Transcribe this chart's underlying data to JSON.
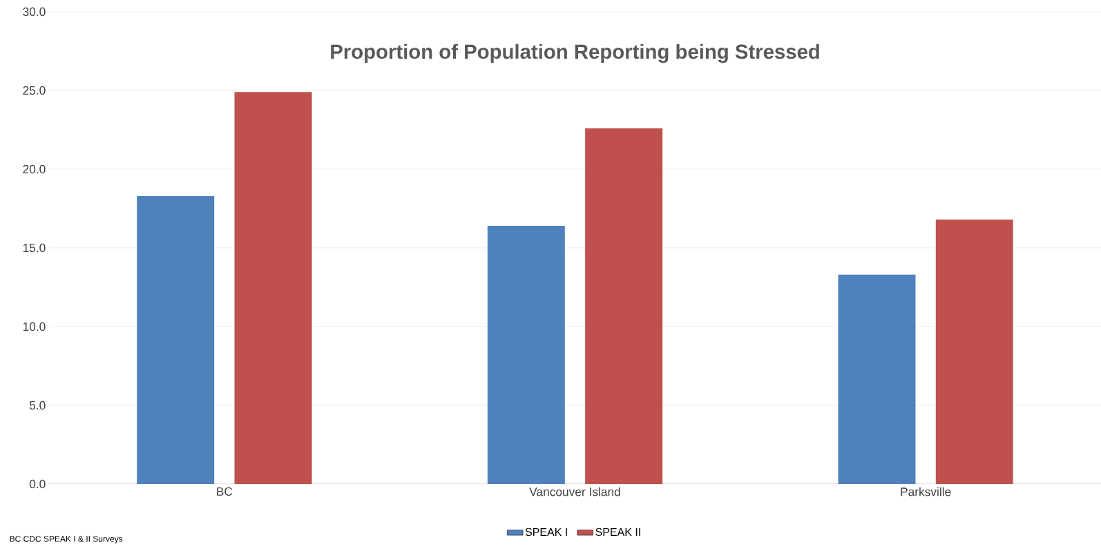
{
  "chart_data": {
    "type": "bar",
    "title": "Proportion of Population Reporting being Stressed",
    "categories": [
      "BC",
      "Vancouver Island",
      "Parksville"
    ],
    "series": [
      {
        "name": "SPEAK I",
        "color": "#4f81bd",
        "values": [
          18.3,
          16.4,
          13.3
        ]
      },
      {
        "name": "SPEAK II",
        "color": "#c0504d",
        "values": [
          24.9,
          22.6,
          16.8
        ]
      }
    ],
    "ylim": [
      0,
      30
    ],
    "yticks": [
      {
        "value": 0,
        "label": "0.0"
      },
      {
        "value": 5,
        "label": "5.0"
      },
      {
        "value": 10,
        "label": "10.0"
      },
      {
        "value": 15,
        "label": "15.0"
      },
      {
        "value": 20,
        "label": "20.0"
      },
      {
        "value": 25,
        "label": "25.0"
      },
      {
        "value": 30,
        "label": "30.0"
      }
    ],
    "grid": "y",
    "legend": "bottom",
    "annotations": [
      "BC CDC SPEAK I & II Surveys"
    ]
  }
}
